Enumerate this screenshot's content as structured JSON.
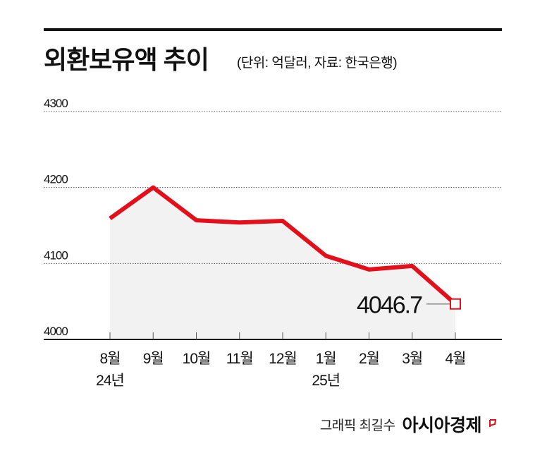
{
  "title": "외환보유액 추이",
  "subtitle": "(단위: 억달러, 자료: 한국은행)",
  "footer": {
    "credit": "그래픽 최길수",
    "brand": "아시아경제"
  },
  "colors": {
    "line": "#e3101c",
    "area": "#f2f2f2",
    "grid": "#555555"
  },
  "chart_data": {
    "type": "line",
    "categories": [
      "8월\n24년",
      "9월",
      "10월",
      "11월",
      "12월",
      "1월\n25년",
      "2월",
      "3월",
      "4월"
    ],
    "series": [
      {
        "values": [
          4159.2,
          4200.0,
          4156.9,
          4153.9,
          4156.0,
          4110.1,
          4092.1,
          4096.7,
          4046.7
        ]
      }
    ],
    "ylim": [
      4000,
      4300
    ],
    "yticks": [
      "4000",
      "4100",
      "4200",
      "4300"
    ],
    "grid": true,
    "annotation": "4046.7",
    "fill_under": true
  }
}
